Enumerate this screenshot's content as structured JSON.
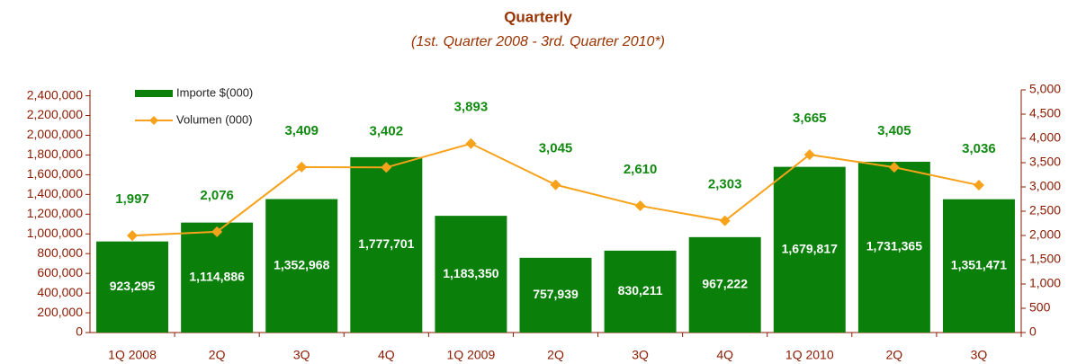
{
  "chart_data": {
    "type": "combo",
    "title": "Quarterly",
    "subtitle": "(1st. Quarter 2008 - 3rd. Quarter 2010*)",
    "categories": [
      "1Q 2008",
      "2Q",
      "3Q",
      "4Q",
      "1Q 2009",
      "2Q",
      "3Q",
      "4Q",
      "1Q 2010",
      "2Q",
      "3Q"
    ],
    "series": [
      {
        "name": "Importe $(000)",
        "type": "bar",
        "color": "#0a7f0a",
        "values": [
          923295,
          1114886,
          1352968,
          1777701,
          1183350,
          757939,
          830211,
          967222,
          1679817,
          1731365,
          1351471
        ],
        "value_labels": [
          "923,295",
          "1,114,886",
          "1,352,968",
          "1,777,701",
          "1,183,350",
          "757,939",
          "830,211",
          "967,222",
          "1,679,817",
          "1,731,365",
          "1,351,471"
        ]
      },
      {
        "name": "Volumen (000)",
        "type": "line",
        "axis": "y2",
        "color": "#f7a21b",
        "values": [
          1997,
          2076,
          3409,
          3402,
          3893,
          3045,
          2610,
          2303,
          3665,
          3405,
          3036
        ],
        "value_labels": [
          "1,997",
          "2,076",
          "3,409",
          "3,402",
          "3,893",
          "3,045",
          "2,610",
          "2,303",
          "3,665",
          "3,405",
          "3,036"
        ]
      }
    ],
    "ylim": [
      0,
      2460000
    ],
    "yticks": [
      0,
      {
        "value": 200000,
        "label": "200,000"
      },
      {
        "value": 400000,
        "label": "400,000"
      },
      {
        "value": 600000,
        "label": "600,000"
      },
      {
        "value": 800000,
        "label": "800,000"
      },
      {
        "value": 1000000,
        "label": "1,000,000"
      },
      {
        "value": 1200000,
        "label": "1,200,000"
      },
      {
        "value": 1400000,
        "label": "1,400,000"
      },
      {
        "value": 1600000,
        "label": "1,600,000"
      },
      {
        "value": 1800000,
        "label": "1,800,000"
      },
      {
        "value": 2000000,
        "label": "2,000,000"
      },
      {
        "value": 2200000,
        "label": "2,200,000"
      },
      {
        "value": 2400000,
        "label": "2,400,000"
      }
    ],
    "y2lim": [
      0,
      5000
    ],
    "y2ticks": [
      0,
      500,
      {
        "value": 1000,
        "label": "1,000"
      },
      {
        "value": 1500,
        "label": "1,500"
      },
      {
        "value": 2000,
        "label": "2,000"
      },
      {
        "value": 2500,
        "label": "2,500"
      },
      {
        "value": 3000,
        "label": "3,000"
      },
      {
        "value": 3500,
        "label": "3,500"
      },
      {
        "value": 4000,
        "label": "4,000"
      },
      {
        "value": 4500,
        "label": "4,500"
      },
      {
        "value": 5000,
        "label": "5,000"
      }
    ],
    "legend": "upper left",
    "grid": false
  }
}
